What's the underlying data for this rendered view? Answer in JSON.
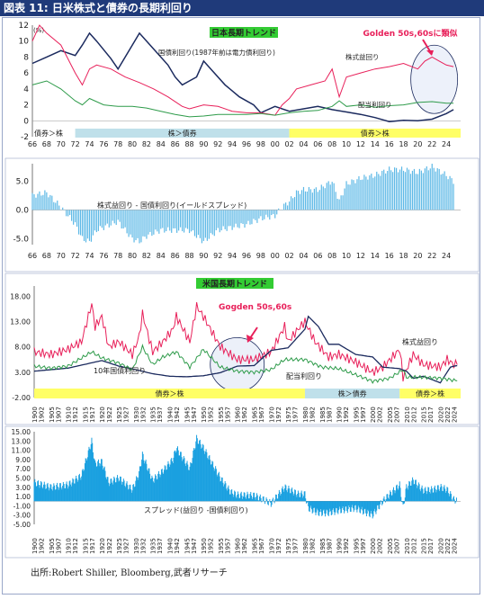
{
  "page_title": "図表 11: 日米株式と債券の長期利回り",
  "source": "出所:Robert Shiller, Bloomberg,武者リサーチ",
  "colors": {
    "bond": "#1b2a5e",
    "earnings": "#e8205a",
    "dividend": "#2e9b4a",
    "spread": "#5cb8e6",
    "band_blue": "#bfe0ea",
    "band_yellow": "#ffff66",
    "callout_fill": "#dfe6f5"
  },
  "chart_data": [
    {
      "id": "jp_yields",
      "type": "line",
      "title": "日本長期トレンド",
      "unit_label": "(%)",
      "xlim": [
        1966,
        2026
      ],
      "ylim": [
        -2,
        12
      ],
      "yticks": [
        -2,
        0,
        2,
        4,
        6,
        8,
        10,
        12
      ],
      "xtick_labels": [
        "66",
        "68",
        "70",
        "72",
        "74",
        "76",
        "78",
        "80",
        "82",
        "84",
        "86",
        "88",
        "90",
        "92",
        "94",
        "96",
        "98",
        "00",
        "02",
        "04",
        "06",
        "08",
        "10",
        "12",
        "14",
        "16",
        "18",
        "20",
        "22",
        "24"
      ],
      "series": [
        {
          "name": "国債利回り(1987年前は電力債利回り)",
          "x": [
            1966,
            1968,
            1970,
            1972,
            1973,
            1974,
            1975,
            1977,
            1978,
            1980,
            1981,
            1983,
            1985,
            1986,
            1987,
            1988,
            1989,
            1990,
            1991,
            1993,
            1995,
            1997,
            1998,
            2000,
            2002,
            2004,
            2006,
            2008,
            2010,
            2012,
            2014,
            2016,
            2018,
            2020,
            2022,
            2024,
            2025
          ],
          "y": [
            7.2,
            8.0,
            8.8,
            8.2,
            9.5,
            11.0,
            10.0,
            7.8,
            6.5,
            9.5,
            11.0,
            9.0,
            7.0,
            5.5,
            4.5,
            5.0,
            5.5,
            7.5,
            6.5,
            4.5,
            3.0,
            2.0,
            1.0,
            1.8,
            1.2,
            1.5,
            1.8,
            1.4,
            1.1,
            0.8,
            0.4,
            -0.1,
            0.05,
            0.0,
            0.2,
            0.9,
            1.4
          ]
        },
        {
          "name": "株式益回り",
          "x": [
            1966,
            1967,
            1968,
            1970,
            1972,
            1973,
            1974,
            1975,
            1977,
            1979,
            1981,
            1983,
            1985,
            1987,
            1988,
            1990,
            1992,
            1994,
            1996,
            1998,
            2000,
            2001,
            2002,
            2003,
            2005,
            2007,
            2008,
            2009,
            2010,
            2012,
            2014,
            2016,
            2018,
            2020,
            2021,
            2022,
            2023,
            2024,
            2025
          ],
          "y": [
            10.0,
            12.0,
            11.0,
            9.5,
            6.0,
            4.5,
            6.5,
            7.0,
            6.5,
            5.5,
            4.8,
            4.0,
            3.0,
            1.8,
            1.5,
            2.0,
            1.8,
            1.2,
            1.0,
            1.0,
            0.7,
            2.0,
            2.8,
            4.0,
            4.5,
            5.0,
            6.5,
            3.0,
            5.5,
            6.0,
            6.5,
            6.8,
            7.2,
            6.5,
            7.5,
            8.0,
            7.5,
            7.0,
            6.8
          ]
        },
        {
          "name": "配当利回り",
          "x": [
            1966,
            1968,
            1970,
            1972,
            1973,
            1974,
            1976,
            1978,
            1980,
            1982,
            1984,
            1986,
            1988,
            1990,
            1992,
            1994,
            1996,
            1998,
            2000,
            2002,
            2004,
            2006,
            2008,
            2009,
            2010,
            2012,
            2014,
            2016,
            2018,
            2020,
            2022,
            2024,
            2025
          ],
          "y": [
            4.5,
            5.0,
            4.0,
            2.5,
            2.0,
            2.8,
            2.0,
            1.8,
            1.8,
            1.6,
            1.2,
            0.8,
            0.5,
            0.6,
            0.8,
            0.8,
            0.8,
            0.9,
            0.7,
            1.0,
            1.2,
            1.3,
            1.8,
            2.5,
            1.8,
            2.0,
            1.7,
            1.9,
            2.0,
            2.3,
            2.4,
            2.2,
            2.2
          ]
        }
      ],
      "regime_bands": [
        {
          "label": "債券＞株",
          "from": 1966,
          "to": 1972,
          "color": "white"
        },
        {
          "label": "株＞債券",
          "from": 1972,
          "to": 2002,
          "color": "blue"
        },
        {
          "label": "債券＞株",
          "from": 2002,
          "to": 2026,
          "color": "yellow"
        }
      ],
      "annotations": [
        {
          "text": "Golden 50s,60sに類似",
          "color": "#e8205a"
        },
        {
          "text": "国債利回り(1987年前は電力債利回り)"
        },
        {
          "text": "株式益回り"
        },
        {
          "text": "配当利回り"
        }
      ]
    },
    {
      "id": "jp_spread",
      "type": "bar",
      "title": "株式益回り - 国債利回り(イールドスプレッド)",
      "xlim": [
        1966,
        2026
      ],
      "ylim": [
        -6,
        8
      ],
      "yticks": [
        -5.0,
        0.0,
        5.0
      ],
      "ytick_labels": [
        "-5.0",
        "0.0",
        "5.0"
      ],
      "xtick_labels": [
        "66",
        "68",
        "70",
        "72",
        "74",
        "76",
        "78",
        "80",
        "82",
        "84",
        "86",
        "88",
        "90",
        "92",
        "94",
        "96",
        "98",
        "00",
        "02",
        "04",
        "06",
        "08",
        "10",
        "12",
        "14",
        "16",
        "18",
        "20",
        "22",
        "24"
      ],
      "x": [
        1966,
        1968,
        1970,
        1971,
        1972,
        1973,
        1974,
        1975,
        1976,
        1977,
        1978,
        1979,
        1980,
        1981,
        1982,
        1983,
        1984,
        1986,
        1988,
        1990,
        1991,
        1992,
        1994,
        1996,
        1998,
        2000,
        2001,
        2002,
        2003,
        2004,
        2006,
        2008,
        2009,
        2010,
        2012,
        2014,
        2016,
        2018,
        2020,
        2022,
        2024,
        2025
      ],
      "values": [
        2.5,
        3.0,
        0.5,
        -1.0,
        -2.5,
        -5.0,
        -5.5,
        -3.5,
        -3.0,
        -2.5,
        -2.0,
        -3.5,
        -5.0,
        -5.5,
        -4.5,
        -4.0,
        -3.5,
        -3.5,
        -3.5,
        -5.5,
        -4.5,
        -3.5,
        -3.0,
        -2.5,
        -1.5,
        -1.0,
        0.5,
        1.5,
        3.0,
        3.5,
        3.5,
        5.0,
        1.5,
        4.5,
        5.5,
        6.0,
        7.0,
        7.0,
        6.5,
        7.5,
        6.0,
        5.0
      ]
    },
    {
      "id": "us_yields",
      "type": "line",
      "title": "米国長期トレンド",
      "xlim": [
        1900,
        2026
      ],
      "ylim": [
        -2,
        20
      ],
      "yticks": [
        -2,
        3,
        8,
        13,
        18
      ],
      "ytick_labels": [
        "-2.00",
        "3.00",
        "8.00",
        "13.00",
        "18.00"
      ],
      "xtick_labels": [
        "1900",
        "1902",
        "1905",
        "1907",
        "1910",
        "1912",
        "1915",
        "1917",
        "1920",
        "1922",
        "1925",
        "1927",
        "1930",
        "1932",
        "1935",
        "1937",
        "1940",
        "1942",
        "1945",
        "1947",
        "1950",
        "1952",
        "1955",
        "1957",
        "1960",
        "1962",
        "1965",
        "1967",
        "1970",
        "1972",
        "1975",
        "1977",
        "1980",
        "1982",
        "1985",
        "1987",
        "1990",
        "1992",
        "1995",
        "1997",
        "2000",
        "2002",
        "2005",
        "2007",
        "2010",
        "2012",
        "2015",
        "2017",
        "2020",
        "2022",
        "2024"
      ],
      "series": [
        {
          "name": "株式益回り",
          "x": [
            1900,
            1905,
            1910,
            1914,
            1917,
            1918,
            1920,
            1922,
            1925,
            1929,
            1931,
            1932,
            1935,
            1938,
            1941,
            1942,
            1946,
            1948,
            1950,
            1955,
            1960,
            1965,
            1970,
            1974,
            1975,
            1978,
            1980,
            1983,
            1987,
            1990,
            1995,
            2000,
            2003,
            2008,
            2009,
            2012,
            2015,
            2020,
            2022,
            2024,
            2025
          ],
          "y": [
            7.0,
            6.5,
            7.5,
            9.0,
            16.5,
            12.0,
            14.0,
            8.0,
            9.0,
            6.5,
            10.0,
            14.5,
            7.0,
            9.0,
            11.5,
            14.0,
            9.0,
            16.0,
            14.0,
            8.0,
            5.5,
            5.5,
            7.0,
            12.0,
            9.0,
            11.5,
            13.0,
            9.0,
            6.0,
            6.5,
            5.0,
            3.0,
            4.0,
            7.5,
            2.0,
            6.5,
            4.5,
            4.0,
            5.5,
            4.5,
            4.5
          ]
        },
        {
          "name": "10年国債利回り",
          "x": [
            1900,
            1910,
            1920,
            1925,
            1930,
            1935,
            1940,
            1945,
            1950,
            1955,
            1960,
            1965,
            1970,
            1975,
            1980,
            1981,
            1984,
            1987,
            1990,
            1995,
            2000,
            2003,
            2008,
            2010,
            2012,
            2015,
            2020,
            2022,
            2023,
            2024,
            2025
          ],
          "y": [
            3.2,
            3.8,
            5.3,
            4.2,
            3.5,
            2.7,
            2.2,
            2.1,
            2.3,
            2.9,
            4.2,
            4.3,
            7.3,
            7.8,
            11.5,
            14.0,
            12.0,
            8.5,
            8.5,
            6.5,
            6.0,
            4.0,
            3.7,
            3.2,
            1.8,
            2.2,
            0.9,
            3.0,
            4.0,
            4.2,
            4.3
          ]
        },
        {
          "name": "配当利回り",
          "x": [
            1900,
            1905,
            1910,
            1917,
            1920,
            1925,
            1929,
            1932,
            1935,
            1938,
            1942,
            1946,
            1950,
            1955,
            1960,
            1965,
            1970,
            1974,
            1980,
            1985,
            1990,
            1995,
            2000,
            2005,
            2009,
            2010,
            2015,
            2020,
            2025
          ],
          "y": [
            4.2,
            3.8,
            4.2,
            7.0,
            5.8,
            4.8,
            3.5,
            8.0,
            4.5,
            6.0,
            7.0,
            4.0,
            7.5,
            4.0,
            3.2,
            3.0,
            3.5,
            5.5,
            5.5,
            4.0,
            3.7,
            2.5,
            1.2,
            1.8,
            3.5,
            2.0,
            2.0,
            1.8,
            1.3
          ]
        }
      ],
      "regime_bands": [
        {
          "label": "債券＞株",
          "from": 1900,
          "to": 1980,
          "color": "yellow"
        },
        {
          "label": "株＞債券",
          "from": 1980,
          "to": 2008,
          "color": "blue"
        },
        {
          "label": "債券＞株",
          "from": 2008,
          "to": 2026,
          "color": "yellow"
        }
      ],
      "annotations": [
        {
          "text": "Gogden 50s,60s",
          "color": "#e8205a"
        },
        {
          "text": "株式益回り"
        },
        {
          "text": "10年国債利回り"
        },
        {
          "text": "配当利回り"
        }
      ]
    },
    {
      "id": "us_spread",
      "type": "area",
      "title": "スプレッド(益回り -国債利回り)",
      "xlim": [
        1900,
        2026
      ],
      "ylim": [
        -5,
        15
      ],
      "yticks": [
        -5,
        -3,
        -1,
        1,
        3,
        5,
        7,
        9,
        11,
        13,
        15
      ],
      "ytick_labels": [
        "-5.00",
        "-3.00",
        "-1.00",
        "1.00",
        "3.00",
        "5.00",
        "7.00",
        "9.00",
        "11.00",
        "13.00",
        "15.00"
      ],
      "xtick_labels": [
        "1900",
        "1902",
        "1905",
        "1907",
        "1910",
        "1912",
        "1915",
        "1917",
        "1920",
        "1922",
        "1925",
        "1927",
        "1930",
        "1932",
        "1935",
        "1937",
        "1940",
        "1942",
        "1945",
        "1947",
        "1950",
        "1952",
        "1955",
        "1957",
        "1960",
        "1962",
        "1965",
        "1967",
        "1970",
        "1972",
        "1975",
        "1977",
        "1980",
        "1982",
        "1985",
        "1987",
        "1990",
        "1992",
        "1995",
        "1997",
        "2000",
        "2002",
        "2005",
        "2007",
        "2010",
        "2012",
        "2015",
        "2017",
        "2020",
        "2022",
        "2024"
      ],
      "x": [
        1900,
        1905,
        1910,
        1914,
        1917,
        1918,
        1920,
        1922,
        1925,
        1929,
        1931,
        1932,
        1935,
        1938,
        1941,
        1942,
        1946,
        1948,
        1950,
        1955,
        1958,
        1960,
        1965,
        1968,
        1970,
        1974,
        1978,
        1980,
        1981,
        1984,
        1987,
        1990,
        1995,
        2000,
        2003,
        2008,
        2009,
        2010,
        2012,
        2015,
        2018,
        2020,
        2022,
        2024,
        2025
      ],
      "values": [
        4.0,
        3.0,
        3.5,
        5.5,
        13.0,
        8.0,
        8.5,
        4.0,
        5.0,
        2.5,
        6.0,
        10.0,
        4.5,
        6.5,
        9.0,
        11.5,
        7.0,
        13.5,
        11.5,
        5.0,
        2.0,
        1.3,
        1.2,
        0.3,
        -0.5,
        3.0,
        1.5,
        1.5,
        -1.5,
        -2.5,
        -2.5,
        -2.0,
        -1.5,
        -3.0,
        0.0,
        3.5,
        -1.5,
        3.0,
        4.5,
        2.3,
        2.5,
        3.0,
        2.5,
        0.3,
        0.2
      ]
    }
  ]
}
